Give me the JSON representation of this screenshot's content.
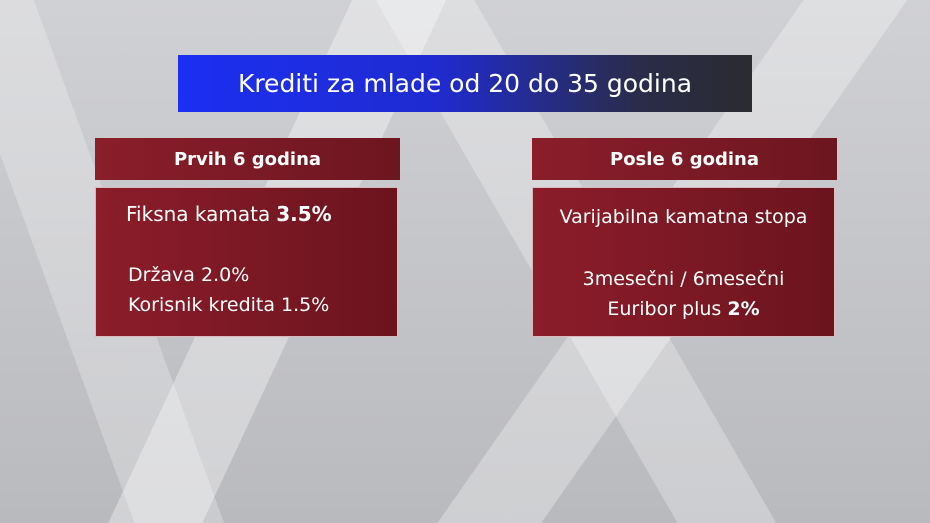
{
  "title": "Krediti za mlade od 20 do 35 godina",
  "panels": [
    {
      "header": "Prvih 6 godina",
      "lines": [
        {
          "text": "Fiksna kamata",
          "bold": "3.5%"
        },
        {
          "text": "Država 2.0%"
        },
        {
          "text": "Korisnik kredita 1.5%"
        }
      ]
    },
    {
      "header": "Posle 6 godina",
      "lines": [
        {
          "text": "Varijabilna kamatna stopa"
        },
        {
          "text": "3mesečni / 6mesečni"
        },
        {
          "text": "Euribor plus",
          "bold": "2%"
        }
      ]
    }
  ]
}
